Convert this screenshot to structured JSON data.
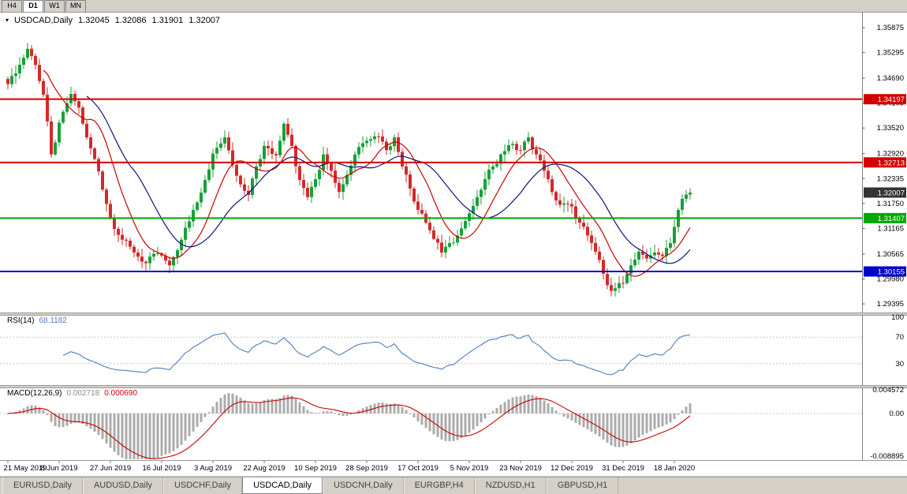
{
  "toolbar": {
    "timeframes": [
      {
        "label": "H4",
        "active": false
      },
      {
        "label": "D1",
        "active": true
      },
      {
        "label": "W1",
        "active": false
      },
      {
        "label": "MN",
        "active": false
      }
    ]
  },
  "chart_title": {
    "arrow": "▾",
    "symbol": "USDCAD,Daily",
    "open": "1.32045",
    "high": "1.32086",
    "low": "1.31901",
    "close": "1.32007"
  },
  "rsi_panel": {
    "name": "RSI(14)",
    "value": "68.1182"
  },
  "macd_panel": {
    "name": "MACD(12,26,9)",
    "macd_value": "0.002718",
    "signal_value": "0.000690"
  },
  "bottom_tabs": [
    {
      "label": "EURUSD,Daily",
      "active": false
    },
    {
      "label": "AUDUSD,Daily",
      "active": false
    },
    {
      "label": "USDCHF,Daily",
      "active": false
    },
    {
      "label": "USDCAD,Daily",
      "active": true
    },
    {
      "label": "USDCNH,Daily",
      "active": false
    },
    {
      "label": "EURGBP,H4",
      "active": false
    },
    {
      "label": "NZDUSD,H1",
      "active": false
    },
    {
      "label": "GBPUSD,H1",
      "active": false
    }
  ],
  "chart_data": {
    "type": "candlestick",
    "title": "USDCAD,Daily",
    "symbol": "USDCAD",
    "timeframe": "Daily",
    "quote": {
      "open": 1.32045,
      "high": 1.32086,
      "low": 1.31901,
      "close": 1.32007
    },
    "price_axis": {
      "ticks": [
        1.35875,
        1.35295,
        1.3469,
        1.34105,
        1.3352,
        1.3292,
        1.32335,
        1.3175,
        1.31165,
        1.30565,
        1.2998,
        1.29395
      ],
      "range": [
        1.29193,
        1.36227
      ],
      "current_price": 1.32007,
      "current_price_box_color": "#333333"
    },
    "time_axis": {
      "labels": [
        "21 May 2019",
        "8 Jun 2019",
        "27 Jun 2019",
        "16 Jul 2019",
        "3 Aug 2019",
        "22 Aug 2019",
        "10 Sep 2019",
        "28 Sep 2019",
        "17 Oct 2019",
        "5 Nov 2019",
        "23 Nov 2019",
        "12 Dec 2019",
        "31 Dec 2019",
        "18 Jan 2020"
      ],
      "label_indices": [
        0,
        13,
        26,
        39,
        52,
        65,
        78,
        91,
        104,
        117,
        130,
        143,
        156,
        169
      ],
      "candle_count": 174
    },
    "horizontal_lines": [
      {
        "value": 1.34197,
        "color": "#d40000",
        "type": "resistance"
      },
      {
        "value": 1.32713,
        "color": "#d40000",
        "type": "resistance"
      },
      {
        "value": 1.31407,
        "color": "#00a800",
        "type": "support"
      },
      {
        "value": 1.30155,
        "color": "#0000cd",
        "type": "support"
      }
    ],
    "close_keypoints": [
      [
        0,
        1.3455
      ],
      [
        2,
        1.348
      ],
      [
        5,
        1.3538
      ],
      [
        7,
        1.35
      ],
      [
        9,
        1.343
      ],
      [
        11,
        1.329
      ],
      [
        14,
        1.339
      ],
      [
        16,
        1.3432
      ],
      [
        18,
        1.34
      ],
      [
        20,
        1.333
      ],
      [
        23,
        1.325
      ],
      [
        26,
        1.314
      ],
      [
        29,
        1.309
      ],
      [
        32,
        1.306
      ],
      [
        35,
        1.3035
      ],
      [
        38,
        1.3058
      ],
      [
        41,
        1.303
      ],
      [
        44,
        1.309
      ],
      [
        47,
        1.316
      ],
      [
        50,
        1.323
      ],
      [
        52,
        1.3292
      ],
      [
        55,
        1.333
      ],
      [
        58,
        1.324
      ],
      [
        61,
        1.3195
      ],
      [
        63,
        1.3262
      ],
      [
        65,
        1.331
      ],
      [
        68,
        1.3288
      ],
      [
        70,
        1.3362
      ],
      [
        72,
        1.331
      ],
      [
        74,
        1.323
      ],
      [
        76,
        1.319
      ],
      [
        78,
        1.3232
      ],
      [
        80,
        1.329
      ],
      [
        82,
        1.3252
      ],
      [
        84,
        1.3202
      ],
      [
        86,
        1.3242
      ],
      [
        88,
        1.329
      ],
      [
        91,
        1.3322
      ],
      [
        94,
        1.3332
      ],
      [
        96,
        1.33
      ],
      [
        98,
        1.333
      ],
      [
        100,
        1.3262
      ],
      [
        102,
        1.321
      ],
      [
        104,
        1.316
      ],
      [
        106,
        1.313
      ],
      [
        108,
        1.3092
      ],
      [
        110,
        1.306
      ],
      [
        112,
        1.3082
      ],
      [
        114,
        1.31
      ],
      [
        117,
        1.3152
      ],
      [
        119,
        1.319
      ],
      [
        121,
        1.3232
      ],
      [
        123,
        1.3262
      ],
      [
        125,
        1.329
      ],
      [
        127,
        1.3312
      ],
      [
        130,
        1.33
      ],
      [
        132,
        1.333
      ],
      [
        134,
        1.329
      ],
      [
        136,
        1.3252
      ],
      [
        138,
        1.3202
      ],
      [
        140,
        1.3172
      ],
      [
        143,
        1.3168
      ],
      [
        145,
        1.313
      ],
      [
        147,
        1.31
      ],
      [
        149,
        1.3062
      ],
      [
        151,
        1.301
      ],
      [
        153,
        1.297
      ],
      [
        156,
        1.2988
      ],
      [
        158,
        1.303
      ],
      [
        160,
        1.3062
      ],
      [
        162,
        1.3046
      ],
      [
        164,
        1.306
      ],
      [
        166,
        1.3052
      ],
      [
        168,
        1.3082
      ],
      [
        169,
        1.312
      ],
      [
        170,
        1.316
      ],
      [
        171,
        1.3186
      ],
      [
        172,
        1.3196
      ],
      [
        173,
        1.32007
      ]
    ],
    "moving_averages": [
      {
        "period": 10,
        "color": "#cc0000"
      },
      {
        "period": 21,
        "color": "#10127e"
      }
    ],
    "candle_colors": {
      "up": "#18a038",
      "down": "#d32a2a"
    },
    "rsi": {
      "period": 14,
      "value": 68.1182,
      "levels": [
        100,
        70,
        30
      ],
      "color": "#4f7dbe",
      "range": [
        0,
        100
      ]
    },
    "macd": {
      "fast": 12,
      "slow": 26,
      "signal": 9,
      "macd_value": 0.002718,
      "signal_value": 0.00069,
      "y_ticks": [
        "0.004572",
        "0.00",
        "-0.008895"
      ],
      "tick_values": [
        0.004572,
        0,
        -0.008895
      ],
      "histogram_color": "#ababab",
      "signal_color": "#cc0000"
    }
  }
}
